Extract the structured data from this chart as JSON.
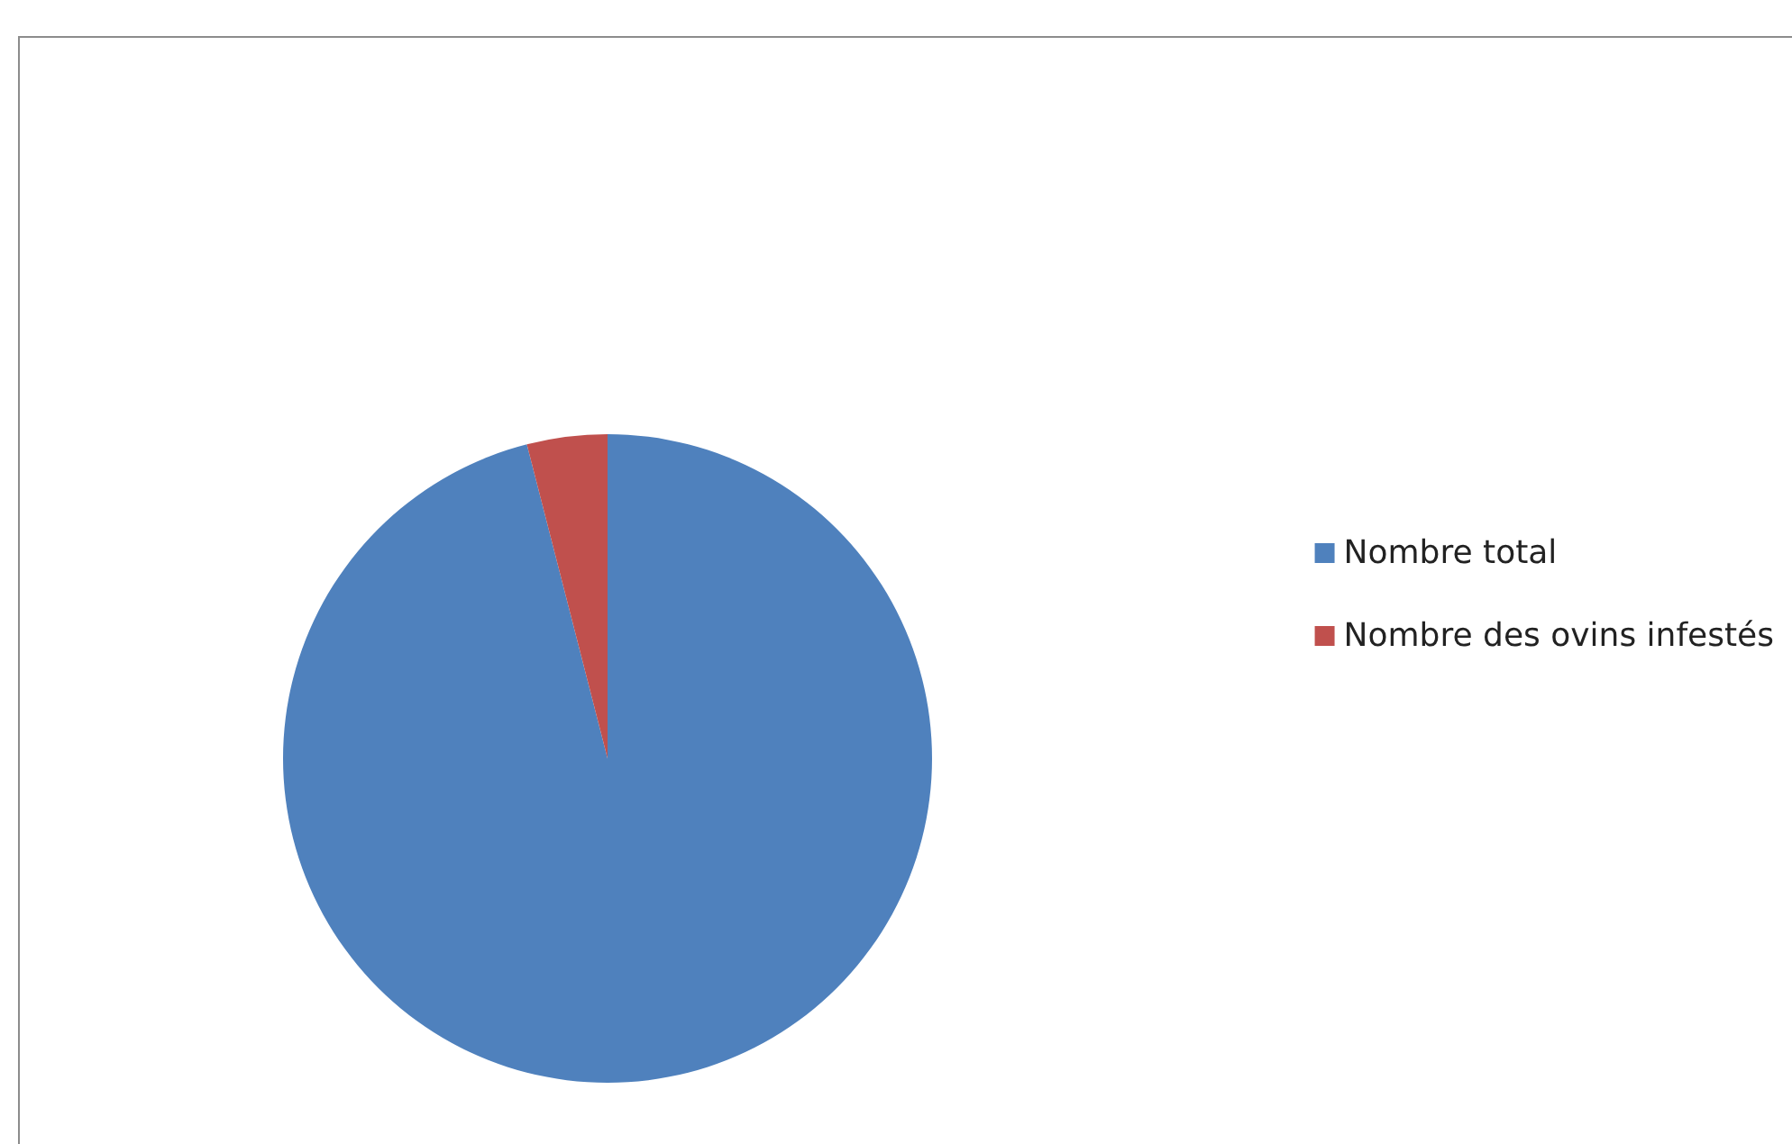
{
  "chart_data": {
    "type": "pie",
    "categories": [
      "Nombre total",
      "Nombre des ovins infestés"
    ],
    "values": [
      96,
      4
    ],
    "colors": [
      "#4f81bd",
      "#c0504d"
    ],
    "legend": "right"
  }
}
